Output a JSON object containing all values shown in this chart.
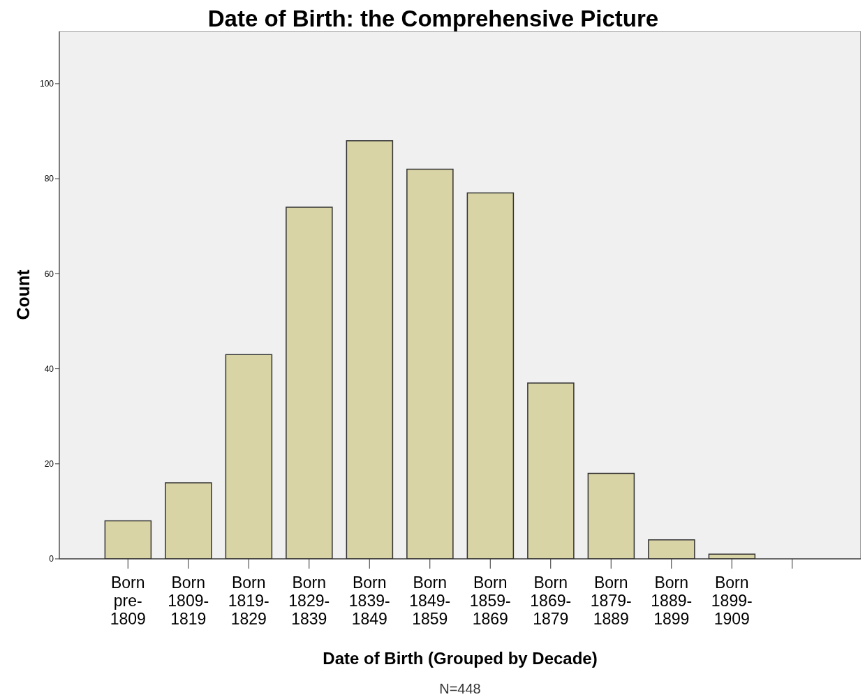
{
  "chart_data": {
    "type": "bar",
    "title": "Date of Birth: the Comprehensive Picture",
    "xlabel": "Date of Birth (Grouped by Decade)",
    "ylabel": "Count",
    "categories": [
      "Born pre-1809",
      "Born 1809-1819",
      "Born 1819-1829",
      "Born 1829-1839",
      "Born 1839-1849",
      "Born 1849-1859",
      "Born 1859-1869",
      "Born 1869-1879",
      "Born 1879-1889",
      "Born 1889-1899",
      "Born 1899-1909",
      null
    ],
    "values": [
      8,
      16,
      43,
      74,
      88,
      82,
      77,
      37,
      18,
      4,
      1,
      null
    ],
    "color": "#d9d4a6",
    "ylim": [
      0,
      111
    ],
    "yticks": [
      0,
      20,
      40,
      60,
      80,
      100
    ],
    "annotations": [
      "N=448"
    ]
  }
}
